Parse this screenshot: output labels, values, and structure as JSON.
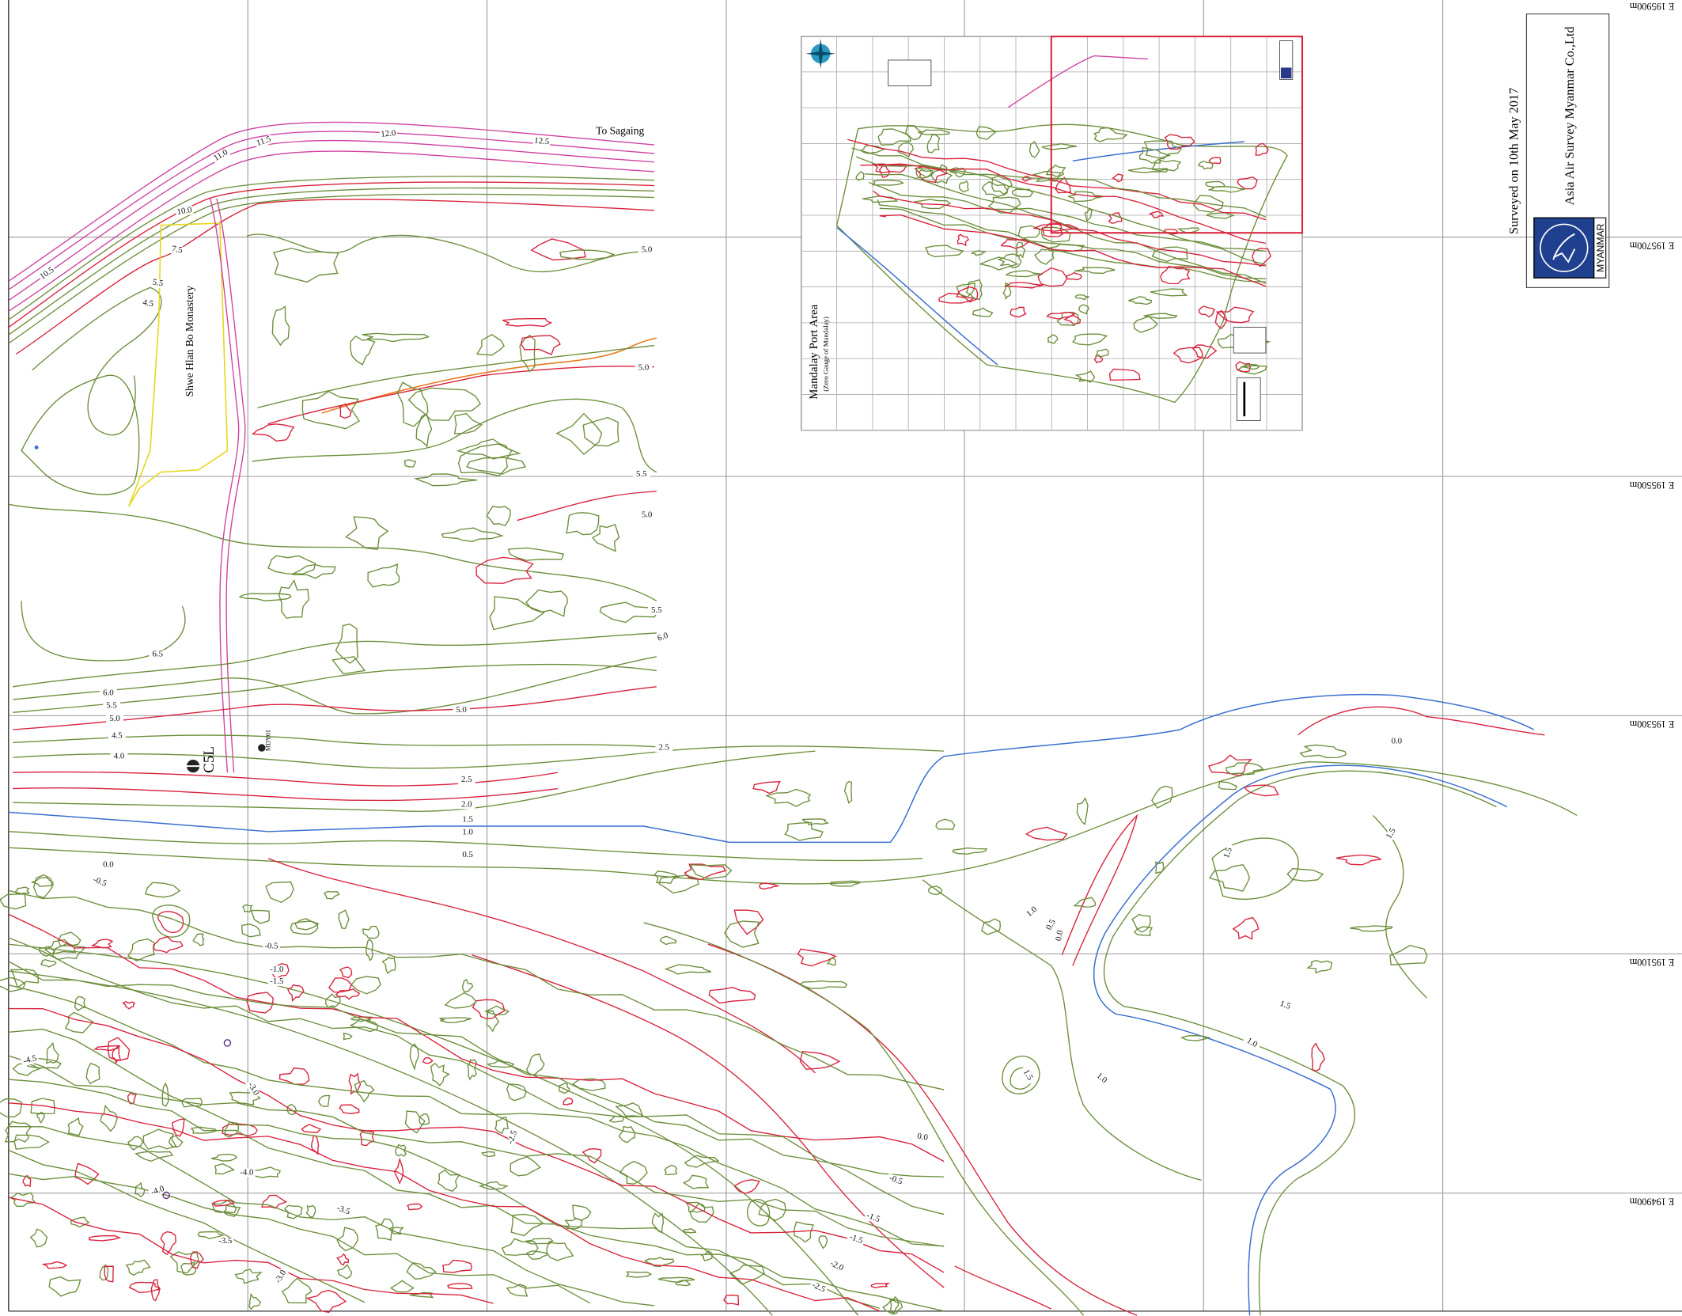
{
  "map": {
    "destination": "To Sagaing",
    "monastery": "Shwe Hlan Bo Monastery",
    "station": "C5L",
    "station_id": "MDY01",
    "grid_labels": [
      "E 195900m",
      "E 195700m",
      "E 195500m",
      "E 195300m",
      "E 195100m",
      "E 194900m"
    ],
    "contour_labels": [
      "10.5",
      "11.0",
      "11.5",
      "12.0",
      "12.5",
      "10.0",
      "7.5",
      "5.5",
      "4.5",
      "5.0",
      "5.0",
      "5.5",
      "5.0",
      "5.5",
      "6.0",
      "6.5",
      "6.0",
      "5.5",
      "5.0",
      "4.5",
      "4.0",
      "5.0",
      "2.5",
      "2.5",
      "2.0",
      "1.5",
      "1.0",
      "0.5",
      "0.0",
      "-0.5",
      "0.0",
      "1.5",
      "1.5",
      "1.0",
      "0.5",
      "0.0",
      "1.5",
      "1.0",
      "1.5",
      "1.0",
      "0.0",
      "-0.5",
      "-1.5",
      "-1.5",
      "-2.0",
      "-2.5",
      "-0.5",
      "-1.0",
      "-1.5",
      "-4.5",
      "-3.0",
      "-2.5",
      "-4.0",
      "-4.0",
      "-3.5",
      "-3.5",
      "-3.0"
    ]
  },
  "inset": {
    "title": "Mandalay Port Area",
    "subtitle": "(Zero Gauge of Mandalay)"
  },
  "survey_note": "Surveyed on 10th May 2017",
  "company": {
    "name": "Asia Air Survey Myanmar Co.,Ltd",
    "country": "MYANMAR"
  }
}
